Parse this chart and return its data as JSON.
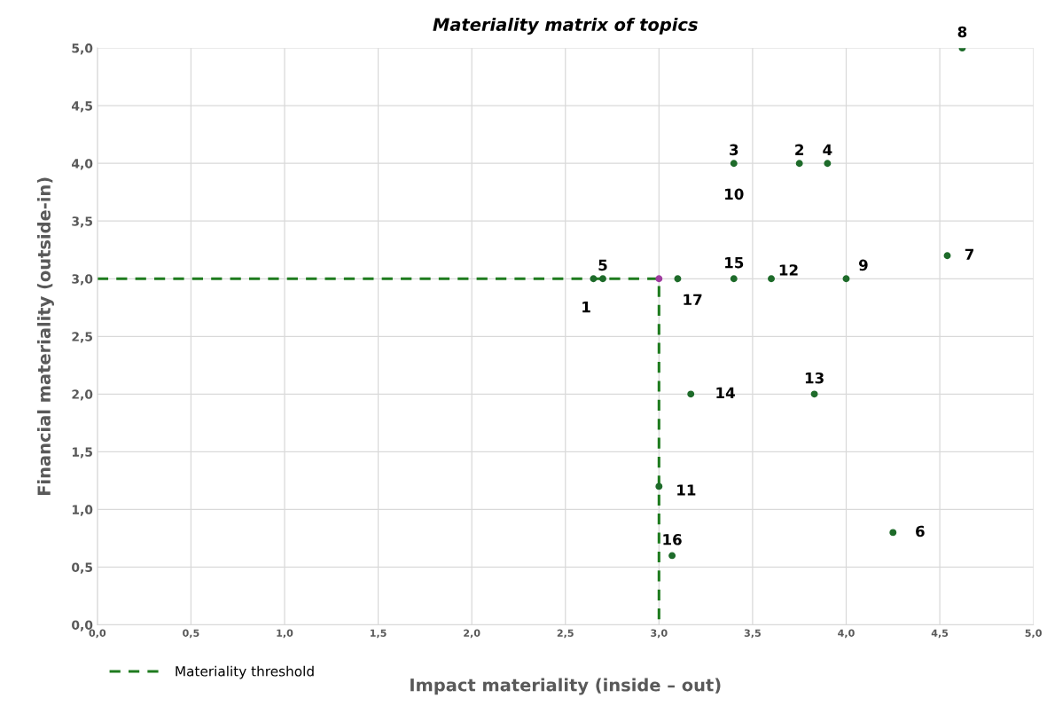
{
  "chart_data": {
    "type": "scatter",
    "title": "Materiality matrix of topics",
    "xlabel": "Impact materiality (inside – out)",
    "ylabel": "Financial materiality (outside-in)",
    "series": [
      {
        "type": "line",
        "name": "Materiality threshold",
        "color": "#1e7b1e",
        "line_style": "dashed",
        "marker": "none",
        "x": [
          0,
          3.0,
          3.0
        ],
        "values": [
          3.0,
          3.0,
          0
        ]
      },
      {
        "color": "#1e6b2a",
        "marker": "circle",
        "x": [
          2.65,
          3.75,
          3.4,
          3.9,
          2.7,
          4.25,
          4.54,
          4.62,
          4.0,
          3.4,
          3.0,
          3.6,
          3.83,
          3.17,
          3.4,
          3.07,
          3.1
        ],
        "values": [
          3.0,
          4.0,
          4.0,
          4.0,
          3.0,
          0.8,
          3.2,
          5.0,
          3.0,
          null,
          1.2,
          3.0,
          2.0,
          2.0,
          3.0,
          0.6,
          3.0
        ]
      },
      {
        "color": "#a03ca0",
        "marker": "circle",
        "x": [
          3.0
        ],
        "values": [
          3.0
        ]
      }
    ],
    "annotations": [
      {
        "text": "1",
        "x": 2.65,
        "y": 3.0
      },
      {
        "text": "2",
        "x": 3.75,
        "y": 4.0
      },
      {
        "text": "3",
        "x": 3.4,
        "y": 4.0
      },
      {
        "text": "4",
        "x": 3.9,
        "y": 4.0
      },
      {
        "text": "5",
        "x": 2.7,
        "y": 3.0
      },
      {
        "text": "6",
        "x": 4.25,
        "y": 0.8
      },
      {
        "text": "7",
        "x": 4.54,
        "y": 3.2
      },
      {
        "text": "8",
        "x": 4.62,
        "y": 5.0
      },
      {
        "text": "9",
        "x": 4.0,
        "y": 3.0
      },
      {
        "text": "10",
        "x": 3.4,
        "y": 4.0
      },
      {
        "text": "11",
        "x": 3.0,
        "y": 1.2
      },
      {
        "text": "12",
        "x": 3.6,
        "y": 3.0
      },
      {
        "text": "13",
        "x": 3.83,
        "y": 2.0
      },
      {
        "text": "14",
        "x": 3.17,
        "y": 2.0
      },
      {
        "text": "15",
        "x": 3.4,
        "y": 3.0
      },
      {
        "text": "16",
        "x": 3.07,
        "y": 0.6
      },
      {
        "text": "17",
        "x": 3.1,
        "y": 3.0
      }
    ],
    "xlim": [
      0,
      5
    ],
    "ylim": [
      0,
      5
    ],
    "xticks": [
      {
        "value": 0,
        "label": "0,0"
      },
      {
        "value": 0.5,
        "label": "0,5"
      },
      {
        "value": 1,
        "label": "1,0"
      },
      {
        "value": 1.5,
        "label": "1,5"
      },
      {
        "value": 2,
        "label": "2,0"
      },
      {
        "value": 2.5,
        "label": "2,5"
      },
      {
        "value": 3,
        "label": "3,0"
      },
      {
        "value": 3.5,
        "label": "3,5"
      },
      {
        "value": 4,
        "label": "4,0"
      },
      {
        "value": 4.5,
        "label": "4,5"
      },
      {
        "value": 5,
        "label": "5,0"
      }
    ],
    "yticks": [
      {
        "value": 0,
        "label": "0,0"
      },
      {
        "value": 0.5,
        "label": "0,5"
      },
      {
        "value": 1,
        "label": "1,0"
      },
      {
        "value": 1.5,
        "label": "1,5"
      },
      {
        "value": 2,
        "label": "2,0"
      },
      {
        "value": 2.5,
        "label": "2,5"
      },
      {
        "value": 3,
        "label": "3,0"
      },
      {
        "value": 3.5,
        "label": "3,5"
      },
      {
        "value": 4,
        "label": "4,0"
      },
      {
        "value": 4.5,
        "label": "4,5"
      },
      {
        "value": 5,
        "label": "5,0"
      }
    ],
    "grid": true,
    "legend": "bottom left"
  }
}
